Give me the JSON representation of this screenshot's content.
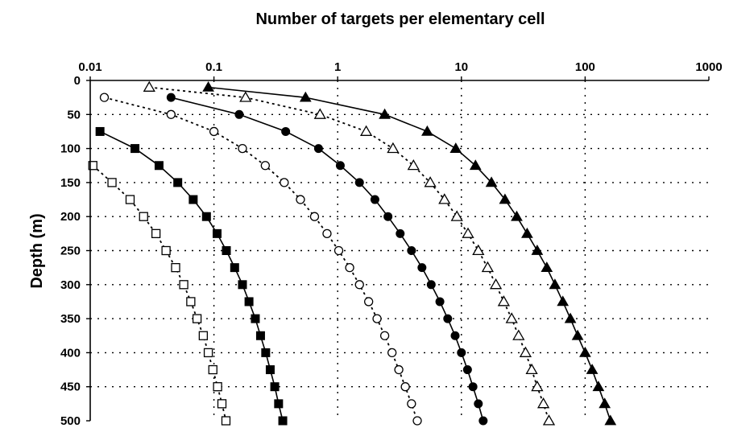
{
  "chart_data": {
    "type": "line",
    "title": "Number of targets per elementary cell",
    "xlabel": "Number of targets per elementary cell",
    "ylabel": "Depth (m)",
    "x_scale": "log",
    "x_axis_position": "top",
    "y_inverted": true,
    "xlim": [
      0.01,
      1000
    ],
    "ylim": [
      0,
      500
    ],
    "x_ticks": [
      "0.01",
      "0.1",
      "1",
      "10",
      "100",
      "1000"
    ],
    "y_ticks": [
      "0",
      "50",
      "100",
      "150",
      "200",
      "250",
      "300",
      "350",
      "400",
      "450",
      "500"
    ],
    "grid": "dotted",
    "legend": "none",
    "series": [
      {
        "marker": "triangle-filled",
        "line": "solid",
        "points": [
          [
            0.09,
            10
          ],
          [
            0.55,
            25
          ],
          [
            2.4,
            50
          ],
          [
            5.3,
            75
          ],
          [
            9.0,
            100
          ],
          [
            13,
            125
          ],
          [
            17.5,
            150
          ],
          [
            22.5,
            175
          ],
          [
            28,
            200
          ],
          [
            34,
            225
          ],
          [
            41,
            250
          ],
          [
            49,
            275
          ],
          [
            57,
            300
          ],
          [
            66,
            325
          ],
          [
            76,
            350
          ],
          [
            87,
            375
          ],
          [
            100,
            400
          ],
          [
            114,
            425
          ],
          [
            128,
            450
          ],
          [
            144,
            475
          ],
          [
            160,
            500
          ]
        ]
      },
      {
        "marker": "triangle-open",
        "line": "dotted",
        "points": [
          [
            0.03,
            10
          ],
          [
            0.18,
            25
          ],
          [
            0.72,
            50
          ],
          [
            1.7,
            75
          ],
          [
            2.8,
            100
          ],
          [
            4.1,
            125
          ],
          [
            5.6,
            150
          ],
          [
            7.3,
            175
          ],
          [
            9.2,
            200
          ],
          [
            11.3,
            225
          ],
          [
            13.7,
            250
          ],
          [
            16.3,
            275
          ],
          [
            19.0,
            300
          ],
          [
            22.0,
            325
          ],
          [
            25.5,
            350
          ],
          [
            29,
            375
          ],
          [
            33,
            400
          ],
          [
            37,
            425
          ],
          [
            41,
            450
          ],
          [
            46,
            475
          ],
          [
            51,
            500
          ]
        ]
      },
      {
        "marker": "circle-filled",
        "line": "solid",
        "points": [
          [
            0.045,
            25
          ],
          [
            0.16,
            50
          ],
          [
            0.38,
            75
          ],
          [
            0.7,
            100
          ],
          [
            1.05,
            125
          ],
          [
            1.5,
            150
          ],
          [
            2.0,
            175
          ],
          [
            2.55,
            200
          ],
          [
            3.2,
            225
          ],
          [
            3.95,
            250
          ],
          [
            4.8,
            275
          ],
          [
            5.7,
            300
          ],
          [
            6.7,
            325
          ],
          [
            7.75,
            350
          ],
          [
            8.9,
            375
          ],
          [
            10.0,
            400
          ],
          [
            11.2,
            425
          ],
          [
            12.4,
            450
          ],
          [
            13.7,
            475
          ],
          [
            15.0,
            500
          ]
        ]
      },
      {
        "marker": "circle-open",
        "line": "dotted",
        "points": [
          [
            0.013,
            25
          ],
          [
            0.045,
            50
          ],
          [
            0.1,
            75
          ],
          [
            0.17,
            100
          ],
          [
            0.26,
            125
          ],
          [
            0.37,
            150
          ],
          [
            0.5,
            175
          ],
          [
            0.65,
            200
          ],
          [
            0.82,
            225
          ],
          [
            1.02,
            250
          ],
          [
            1.25,
            275
          ],
          [
            1.5,
            300
          ],
          [
            1.78,
            325
          ],
          [
            2.08,
            350
          ],
          [
            2.4,
            375
          ],
          [
            2.75,
            400
          ],
          [
            3.12,
            425
          ],
          [
            3.52,
            450
          ],
          [
            3.95,
            475
          ],
          [
            4.4,
            500
          ]
        ]
      },
      {
        "marker": "square-filled",
        "line": "solid",
        "points": [
          [
            0.012,
            75
          ],
          [
            0.023,
            100
          ],
          [
            0.036,
            125
          ],
          [
            0.051,
            150
          ],
          [
            0.068,
            175
          ],
          [
            0.087,
            200
          ],
          [
            0.106,
            225
          ],
          [
            0.126,
            250
          ],
          [
            0.147,
            275
          ],
          [
            0.17,
            300
          ],
          [
            0.192,
            325
          ],
          [
            0.216,
            350
          ],
          [
            0.238,
            375
          ],
          [
            0.262,
            400
          ],
          [
            0.285,
            425
          ],
          [
            0.31,
            450
          ],
          [
            0.333,
            475
          ],
          [
            0.36,
            500
          ]
        ]
      },
      {
        "marker": "square-open",
        "line": "dotted",
        "points": [
          [
            0.0105,
            125
          ],
          [
            0.015,
            150
          ],
          [
            0.021,
            175
          ],
          [
            0.027,
            200
          ],
          [
            0.034,
            225
          ],
          [
            0.041,
            250
          ],
          [
            0.049,
            275
          ],
          [
            0.057,
            300
          ],
          [
            0.065,
            325
          ],
          [
            0.073,
            350
          ],
          [
            0.082,
            375
          ],
          [
            0.09,
            400
          ],
          [
            0.098,
            425
          ],
          [
            0.107,
            450
          ],
          [
            0.116,
            475
          ],
          [
            0.125,
            500
          ]
        ]
      }
    ]
  }
}
